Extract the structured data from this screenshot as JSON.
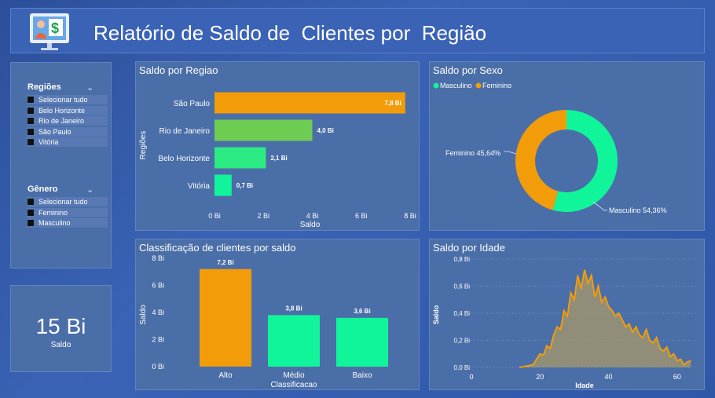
{
  "header": {
    "title": "Relatório de Saldo de  Clientes por  Região"
  },
  "slicers": {
    "regioes": {
      "title": "Regiões",
      "items": [
        "Selecionar tudo",
        "Belo Horizonte",
        "Rio de Janeiro",
        "São Paulo",
        "Vitória"
      ]
    },
    "genero": {
      "title": "Gênero",
      "items": [
        "Selecionar tudo",
        "Feminino",
        "Masculino"
      ]
    }
  },
  "kpi": {
    "value": "15 Bi",
    "label": "Saldo"
  },
  "colors": {
    "orange": "#f29c0a",
    "green_light": "#6fcc52",
    "green": "#2ceb82",
    "mint": "#11f59a"
  },
  "chart_data": [
    {
      "id": "saldo_regiao",
      "type": "bar",
      "orientation": "horizontal",
      "title": "Saldo por Regiao",
      "categories": [
        "São Paulo",
        "Rio de Janeiro",
        "Belo Horizonte",
        "Vitória"
      ],
      "values": [
        7.8,
        4.0,
        2.1,
        0.7
      ],
      "data_labels": [
        "7,8 Bi",
        "4,0 Bi",
        "2,1 Bi",
        "0,7 Bi"
      ],
      "bar_colors": [
        "#f29c0a",
        "#6fcc52",
        "#2ceb82",
        "#11f59a"
      ],
      "xlabel": "Saldo",
      "ylabel": "Regiões",
      "xlim": [
        0,
        8
      ],
      "xticks": [
        "0 Bi",
        "2 Bi",
        "4 Bi",
        "6 Bi",
        "8 Bi"
      ]
    },
    {
      "id": "saldo_sexo",
      "type": "pie",
      "donut": true,
      "title": "Saldo por Sexo",
      "labels": [
        "Masculino",
        "Feminino"
      ],
      "values": [
        54.36,
        45.64
      ],
      "data_labels": [
        "Masculino 54,36%",
        "Feminino 45,64%"
      ],
      "colors": [
        "#11f59a",
        "#f29c0a"
      ],
      "legend": "top-left"
    },
    {
      "id": "classificacao",
      "type": "bar",
      "title": "Classificação de clientes por saldo",
      "categories": [
        "Alto",
        "Médio",
        "Baixo"
      ],
      "values": [
        7.2,
        3.8,
        3.6
      ],
      "data_labels": [
        "7,2 Bi",
        "3,8 Bi",
        "3,6 Bi"
      ],
      "bar_colors": [
        "#f29c0a",
        "#11f59a",
        "#11f59a"
      ],
      "xlabel": "Classificacao",
      "ylabel": "Saldo",
      "ylim": [
        0,
        8
      ],
      "yticks": [
        "0 Bi",
        "2 Bi",
        "4 Bi",
        "6 Bi",
        "8 Bi"
      ]
    },
    {
      "id": "saldo_idade",
      "type": "area",
      "title": "Saldo por Idade",
      "xlabel": "Idade",
      "ylabel": "Saldo",
      "xlim": [
        0,
        66
      ],
      "ylim": [
        0,
        0.8
      ],
      "xticks": [
        "0",
        "20",
        "40",
        "60"
      ],
      "yticks": [
        "0,0 Bi",
        "0,2 Bi",
        "0,4 Bi",
        "0,6 Bi",
        "0,8 Bi"
      ],
      "grid": true,
      "x": [
        14,
        16,
        18,
        19,
        20,
        21,
        22,
        23,
        24,
        25,
        26,
        27,
        28,
        29,
        30,
        31,
        32,
        33,
        34,
        35,
        36,
        37,
        38,
        39,
        40,
        41,
        42,
        43,
        44,
        45,
        46,
        47,
        48,
        49,
        50,
        51,
        52,
        53,
        54,
        55,
        56,
        57,
        58,
        59,
        60,
        61,
        62,
        63,
        64
      ],
      "y": [
        0.0,
        0.01,
        0.02,
        0.06,
        0.1,
        0.09,
        0.16,
        0.14,
        0.24,
        0.3,
        0.28,
        0.42,
        0.38,
        0.55,
        0.5,
        0.68,
        0.58,
        0.72,
        0.62,
        0.68,
        0.52,
        0.6,
        0.48,
        0.52,
        0.45,
        0.42,
        0.38,
        0.4,
        0.35,
        0.3,
        0.32,
        0.26,
        0.3,
        0.24,
        0.22,
        0.28,
        0.2,
        0.18,
        0.22,
        0.14,
        0.12,
        0.15,
        0.08,
        0.1,
        0.05,
        0.06,
        0.02,
        0.04,
        0.05
      ]
    }
  ]
}
